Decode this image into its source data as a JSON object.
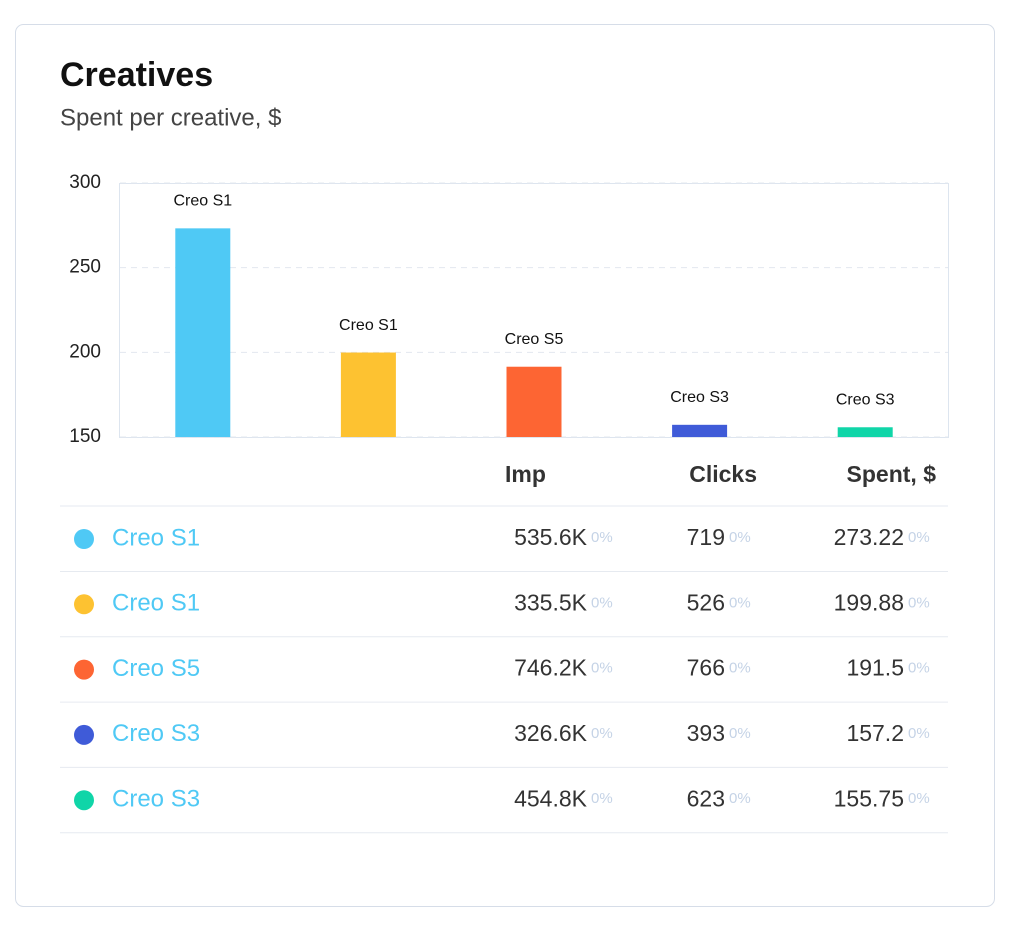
{
  "chart_data": {
    "type": "bar",
    "title": "Creatives",
    "subtitle": "Spent per creative, $",
    "categories": [
      "Creo S1",
      "Creo S1",
      "Creo S5",
      "Creo S3",
      "Creo S3"
    ],
    "values": [
      273.22,
      199.88,
      191.5,
      157.2,
      155.75
    ],
    "colors": [
      "#4fc9f5",
      "#fdc231",
      "#fd6533",
      "#3f5bd8",
      "#10d5a8"
    ],
    "ylim": [
      150,
      300
    ],
    "yticks": [
      150,
      200,
      250,
      300
    ],
    "grid": true
  },
  "table": {
    "columns": [
      "Imp",
      "Clicks",
      "Spent, $"
    ],
    "rows": [
      {
        "name": "Creo S1",
        "imp": "535.6K",
        "imp_change": "0%",
        "clicks": "719",
        "clicks_change": "0%",
        "spent": "273.22",
        "spent_change": "0%"
      },
      {
        "name": "Creo S1",
        "imp": "335.5K",
        "imp_change": "0%",
        "clicks": "526",
        "clicks_change": "0%",
        "spent": "199.88",
        "spent_change": "0%"
      },
      {
        "name": "Creo S5",
        "imp": "746.2K",
        "imp_change": "0%",
        "clicks": "766",
        "clicks_change": "0%",
        "spent": "191.5",
        "spent_change": "0%"
      },
      {
        "name": "Creo S3",
        "imp": "326.6K",
        "imp_change": "0%",
        "clicks": "393",
        "clicks_change": "0%",
        "spent": "157.2",
        "spent_change": "0%"
      },
      {
        "name": "Creo S3",
        "imp": "454.8K",
        "imp_change": "0%",
        "clicks": "623",
        "clicks_change": "0%",
        "spent": "155.75",
        "spent_change": "0%"
      }
    ]
  }
}
